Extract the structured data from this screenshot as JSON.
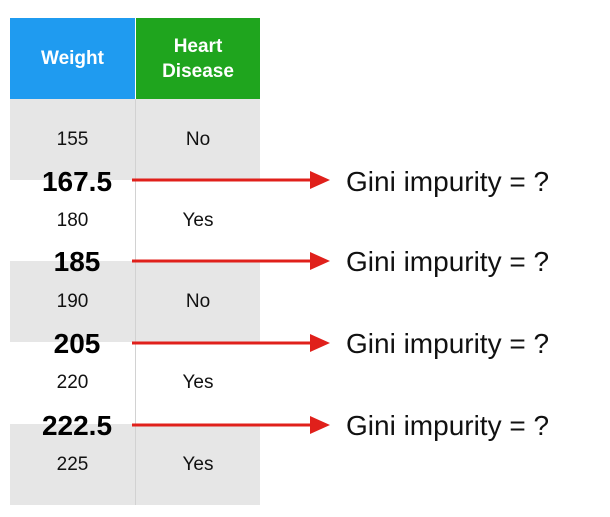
{
  "table": {
    "header_weight": "Weight",
    "header_disease_line1": "Heart",
    "header_disease_line2": "Disease",
    "rows": [
      {
        "weight": "155",
        "disease": "No"
      },
      {
        "weight": "180",
        "disease": "Yes"
      },
      {
        "weight": "190",
        "disease": "No"
      },
      {
        "weight": "220",
        "disease": "Yes"
      },
      {
        "weight": "225",
        "disease": "Yes"
      }
    ]
  },
  "thresholds": [
    {
      "value": "167.5",
      "label": "Gini impurity = ?"
    },
    {
      "value": "185",
      "label": "Gini impurity = ?"
    },
    {
      "value": "205",
      "label": "Gini impurity = ?"
    },
    {
      "value": "222.5",
      "label": "Gini impurity = ?"
    }
  ],
  "colors": {
    "weight_header": "#1f9bf0",
    "disease_header": "#1fa51e",
    "arrow": "#e0201b",
    "row_shade": "#e6e6e6"
  }
}
